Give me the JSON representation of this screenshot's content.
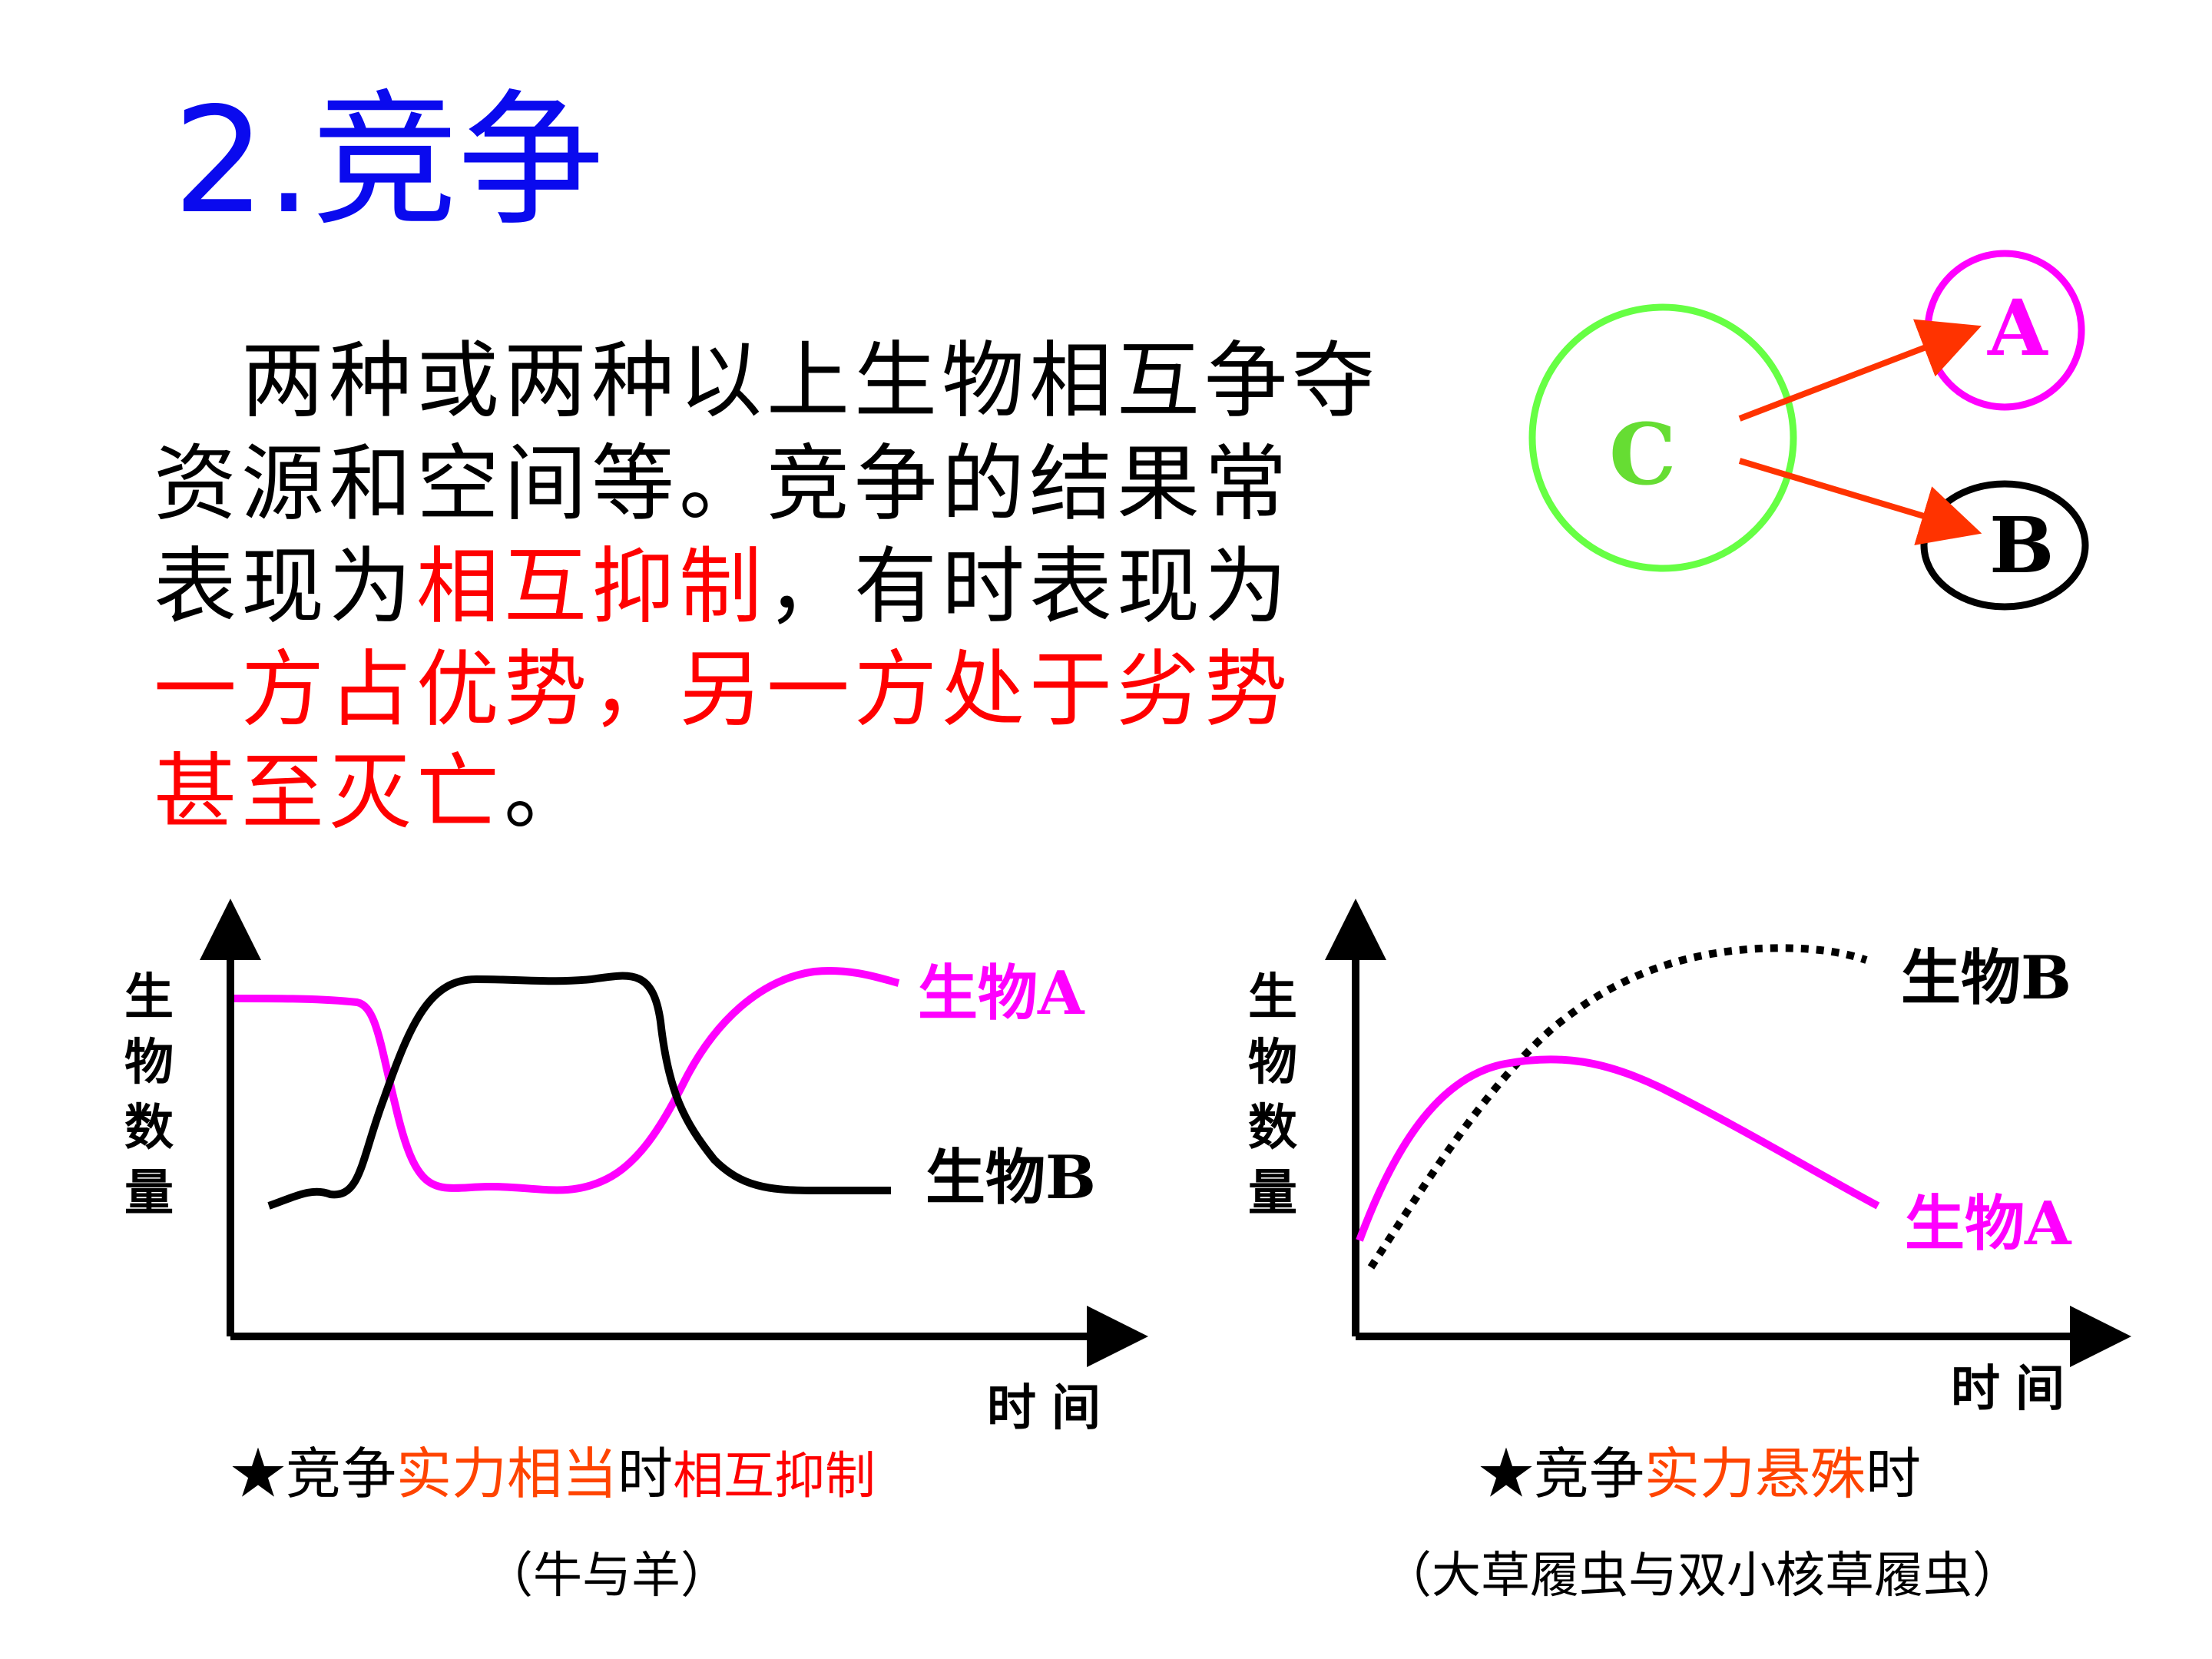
{
  "colors": {
    "title": "#0a0aee",
    "body": "#000000",
    "emphasis": "#ff0000",
    "magenta": "#ff00ff",
    "green": "#66ff44",
    "arrow": "#ff3300",
    "caption_highlight": "#ff4400"
  },
  "title": "2.竞争",
  "paragraph": {
    "line1": "两种或两种以上生物相互争夺",
    "line2": "资源和空间等。竞争的结果常",
    "line3_a": "表现为",
    "line3_b": "相互抑制",
    "line3_c": "，有时表现为",
    "line4": "一方占优势，另一方处于劣势",
    "line5_a": "甚至灭亡",
    "line5_b": "。"
  },
  "diagram": {
    "center_label": "C",
    "node_a_label": "A",
    "node_b_label": "B"
  },
  "chart_data": [
    {
      "type": "line",
      "ylabel": "生物数量",
      "xlabel": "时间",
      "series": [
        {
          "name": "生物A",
          "color": "#ff00ff",
          "style": "solid"
        },
        {
          "name": "生物B",
          "color": "#000000",
          "style": "solid"
        }
      ],
      "caption": {
        "star": "★",
        "part1": "竞争",
        "part2": "实力相当",
        "part3": "时",
        "part4": "相互抑制"
      },
      "subtitle": "（牛与羊）"
    },
    {
      "type": "line",
      "ylabel": "生物数量",
      "xlabel": "时间",
      "series": [
        {
          "name": "生物B",
          "color": "#000000",
          "style": "dotted"
        },
        {
          "name": "生物A",
          "color": "#ff00ff",
          "style": "solid"
        }
      ],
      "caption": {
        "star": "★",
        "part1": "竞争",
        "part2": "实力悬殊",
        "part3": "时"
      },
      "subtitle": "（大草履虫与双小核草履虫）"
    }
  ]
}
